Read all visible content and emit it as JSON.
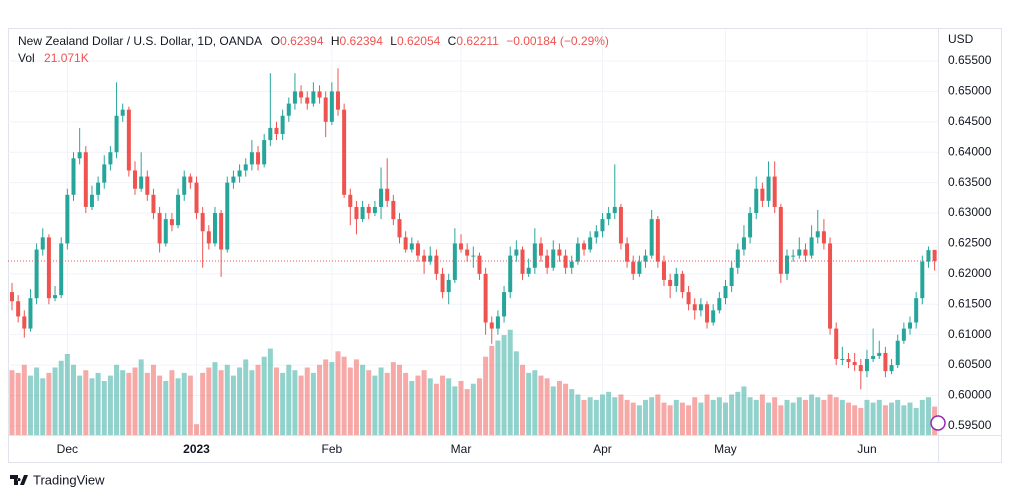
{
  "chart_data": {
    "type": "candlestick",
    "title": "New Zealand Dollar / U.S. Dollar, 1D, OANDA",
    "ohlc_labels": [
      "O",
      "H",
      "L",
      "C"
    ],
    "change_label": "−0.00184 (−0.29%)",
    "volume_label": "Vol",
    "volume_value_label": "21.071K",
    "currency": "USD",
    "up_color": "#26a69a",
    "down_color": "#ef5350",
    "grid": true,
    "xlim": [
      -0.65,
      150.55
    ],
    "xticks": [
      {
        "value": 9,
        "label": "Dec"
      },
      {
        "value": 30,
        "label": "2023"
      },
      {
        "value": 52,
        "label": "Feb"
      },
      {
        "value": 73,
        "label": "Mar"
      },
      {
        "value": 96,
        "label": "Apr"
      },
      {
        "value": 116,
        "label": "May"
      },
      {
        "value": 139,
        "label": "Jun"
      }
    ],
    "ylim": [
      0.5935,
      0.6601
    ],
    "yticks": [
      {
        "value": 0.655,
        "label": "0.65500"
      },
      {
        "value": 0.65,
        "label": "0.65000"
      },
      {
        "value": 0.645,
        "label": "0.64500"
      },
      {
        "value": 0.64,
        "label": "0.64000"
      },
      {
        "value": 0.635,
        "label": "0.63500"
      },
      {
        "value": 0.63,
        "label": "0.63000"
      },
      {
        "value": 0.625,
        "label": "0.62500"
      },
      {
        "value": 0.62,
        "label": "0.62000"
      },
      {
        "value": 0.615,
        "label": "0.61500"
      },
      {
        "value": 0.61,
        "label": "0.61000"
      },
      {
        "value": 0.605,
        "label": "0.60500"
      },
      {
        "value": 0.6,
        "label": "0.60000"
      },
      {
        "value": 0.595,
        "label": "0.59500"
      }
    ],
    "volume_lim": [
      0,
      300
    ],
    "candles": [
      [
        0.617,
        0.6185,
        0.614,
        0.6155
      ],
      [
        0.6155,
        0.6165,
        0.612,
        0.613
      ],
      [
        0.613,
        0.614,
        0.6095,
        0.611
      ],
      [
        0.611,
        0.6175,
        0.6105,
        0.616
      ],
      [
        0.616,
        0.625,
        0.615,
        0.624
      ],
      [
        0.624,
        0.6275,
        0.623,
        0.626
      ],
      [
        0.626,
        0.6265,
        0.615,
        0.616
      ],
      [
        0.616,
        0.618,
        0.6155,
        0.6165
      ],
      [
        0.6165,
        0.626,
        0.616,
        0.625
      ],
      [
        0.625,
        0.634,
        0.624,
        0.633
      ],
      [
        0.633,
        0.64,
        0.632,
        0.639
      ],
      [
        0.639,
        0.644,
        0.638,
        0.64
      ],
      [
        0.64,
        0.641,
        0.63,
        0.631
      ],
      [
        0.631,
        0.6345,
        0.6305,
        0.633
      ],
      [
        0.633,
        0.636,
        0.632,
        0.635
      ],
      [
        0.635,
        0.6395,
        0.634,
        0.638
      ],
      [
        0.638,
        0.641,
        0.637,
        0.64
      ],
      [
        0.64,
        0.6515,
        0.639,
        0.646
      ],
      [
        0.646,
        0.648,
        0.645,
        0.647
      ],
      [
        0.647,
        0.6475,
        0.636,
        0.637
      ],
      [
        0.637,
        0.6385,
        0.633,
        0.634
      ],
      [
        0.634,
        0.64,
        0.6335,
        0.636
      ],
      [
        0.636,
        0.637,
        0.632,
        0.633
      ],
      [
        0.633,
        0.634,
        0.629,
        0.63
      ],
      [
        0.63,
        0.631,
        0.6235,
        0.625
      ],
      [
        0.625,
        0.63,
        0.6245,
        0.629
      ],
      [
        0.629,
        0.63,
        0.627,
        0.628
      ],
      [
        0.628,
        0.634,
        0.6275,
        0.633
      ],
      [
        0.633,
        0.637,
        0.632,
        0.636
      ],
      [
        0.636,
        0.6365,
        0.634,
        0.635
      ],
      [
        0.635,
        0.636,
        0.629,
        0.63
      ],
      [
        0.63,
        0.631,
        0.621,
        0.627
      ],
      [
        0.627,
        0.628,
        0.624,
        0.625
      ],
      [
        0.625,
        0.631,
        0.6245,
        0.63
      ],
      [
        0.63,
        0.6305,
        0.6195,
        0.624
      ],
      [
        0.624,
        0.636,
        0.6235,
        0.635
      ],
      [
        0.635,
        0.637,
        0.634,
        0.636
      ],
      [
        0.636,
        0.638,
        0.635,
        0.637
      ],
      [
        0.637,
        0.639,
        0.636,
        0.638
      ],
      [
        0.638,
        0.642,
        0.637,
        0.64
      ],
      [
        0.64,
        0.641,
        0.637,
        0.638
      ],
      [
        0.638,
        0.643,
        0.6375,
        0.642
      ],
      [
        0.642,
        0.653,
        0.641,
        0.644
      ],
      [
        0.644,
        0.645,
        0.642,
        0.643
      ],
      [
        0.643,
        0.647,
        0.642,
        0.646
      ],
      [
        0.646,
        0.649,
        0.645,
        0.648
      ],
      [
        0.648,
        0.653,
        0.647,
        0.65
      ],
      [
        0.65,
        0.651,
        0.648,
        0.649
      ],
      [
        0.649,
        0.65,
        0.647,
        0.648
      ],
      [
        0.648,
        0.6515,
        0.6475,
        0.65
      ],
      [
        0.65,
        0.651,
        0.648,
        0.649
      ],
      [
        0.649,
        0.65,
        0.6425,
        0.645
      ],
      [
        0.645,
        0.6515,
        0.6445,
        0.65
      ],
      [
        0.65,
        0.6538,
        0.646,
        0.647
      ],
      [
        0.647,
        0.648,
        0.6325,
        0.633
      ],
      [
        0.633,
        0.634,
        0.628,
        0.631
      ],
      [
        0.631,
        0.632,
        0.6265,
        0.629
      ],
      [
        0.629,
        0.632,
        0.6285,
        0.631
      ],
      [
        0.631,
        0.6315,
        0.629,
        0.63
      ],
      [
        0.63,
        0.632,
        0.6295,
        0.631
      ],
      [
        0.631,
        0.6375,
        0.629,
        0.634
      ],
      [
        0.634,
        0.639,
        0.631,
        0.632
      ],
      [
        0.632,
        0.633,
        0.628,
        0.629
      ],
      [
        0.629,
        0.63,
        0.625,
        0.626
      ],
      [
        0.626,
        0.627,
        0.6235,
        0.624
      ],
      [
        0.624,
        0.626,
        0.6235,
        0.625
      ],
      [
        0.625,
        0.6255,
        0.622,
        0.623
      ],
      [
        0.623,
        0.624,
        0.62,
        0.622
      ],
      [
        0.622,
        0.6245,
        0.6215,
        0.623
      ],
      [
        0.623,
        0.624,
        0.619,
        0.62
      ],
      [
        0.62,
        0.621,
        0.616,
        0.617
      ],
      [
        0.617,
        0.62,
        0.615,
        0.619
      ],
      [
        0.619,
        0.6275,
        0.6185,
        0.625
      ],
      [
        0.625,
        0.6265,
        0.6235,
        0.624
      ],
      [
        0.624,
        0.625,
        0.622,
        0.623
      ],
      [
        0.623,
        0.6245,
        0.621,
        0.623
      ],
      [
        0.623,
        0.6235,
        0.619,
        0.62
      ],
      [
        0.62,
        0.621,
        0.61,
        0.612
      ],
      [
        0.612,
        0.613,
        0.6085,
        0.611
      ],
      [
        0.611,
        0.614,
        0.61,
        0.613
      ],
      [
        0.613,
        0.618,
        0.612,
        0.617
      ],
      [
        0.617,
        0.6245,
        0.616,
        0.623
      ],
      [
        0.623,
        0.6255,
        0.622,
        0.624
      ],
      [
        0.624,
        0.6245,
        0.619,
        0.62
      ],
      [
        0.62,
        0.6225,
        0.6195,
        0.621
      ],
      [
        0.621,
        0.6275,
        0.62,
        0.625
      ],
      [
        0.625,
        0.626,
        0.622,
        0.623
      ],
      [
        0.623,
        0.624,
        0.62,
        0.621
      ],
      [
        0.621,
        0.6255,
        0.6205,
        0.624
      ],
      [
        0.624,
        0.625,
        0.622,
        0.623
      ],
      [
        0.623,
        0.624,
        0.62,
        0.621
      ],
      [
        0.621,
        0.623,
        0.62,
        0.622
      ],
      [
        0.622,
        0.626,
        0.6215,
        0.625
      ],
      [
        0.625,
        0.6255,
        0.623,
        0.624
      ],
      [
        0.624,
        0.627,
        0.6235,
        0.626
      ],
      [
        0.626,
        0.628,
        0.625,
        0.627
      ],
      [
        0.627,
        0.63,
        0.626,
        0.629
      ],
      [
        0.629,
        0.631,
        0.628,
        0.63
      ],
      [
        0.63,
        0.638,
        0.629,
        0.631
      ],
      [
        0.631,
        0.6315,
        0.624,
        0.625
      ],
      [
        0.625,
        0.626,
        0.621,
        0.622
      ],
      [
        0.622,
        0.623,
        0.619,
        0.62
      ],
      [
        0.62,
        0.623,
        0.6195,
        0.622
      ],
      [
        0.622,
        0.624,
        0.621,
        0.623
      ],
      [
        0.623,
        0.6305,
        0.6225,
        0.629
      ],
      [
        0.629,
        0.6295,
        0.621,
        0.622
      ],
      [
        0.622,
        0.623,
        0.618,
        0.619
      ],
      [
        0.619,
        0.62,
        0.616,
        0.618
      ],
      [
        0.618,
        0.621,
        0.617,
        0.62
      ],
      [
        0.62,
        0.6205,
        0.616,
        0.617
      ],
      [
        0.617,
        0.618,
        0.614,
        0.615
      ],
      [
        0.615,
        0.616,
        0.6125,
        0.614
      ],
      [
        0.614,
        0.616,
        0.613,
        0.615
      ],
      [
        0.615,
        0.6155,
        0.611,
        0.612
      ],
      [
        0.612,
        0.615,
        0.6115,
        0.614
      ],
      [
        0.614,
        0.617,
        0.6135,
        0.616
      ],
      [
        0.616,
        0.619,
        0.615,
        0.618
      ],
      [
        0.618,
        0.622,
        0.617,
        0.621
      ],
      [
        0.621,
        0.625,
        0.62,
        0.624
      ],
      [
        0.624,
        0.628,
        0.623,
        0.626
      ],
      [
        0.626,
        0.631,
        0.625,
        0.63
      ],
      [
        0.63,
        0.636,
        0.629,
        0.634
      ],
      [
        0.634,
        0.635,
        0.631,
        0.632
      ],
      [
        0.632,
        0.6385,
        0.631,
        0.636
      ],
      [
        0.636,
        0.6385,
        0.63,
        0.631
      ],
      [
        0.631,
        0.6315,
        0.6185,
        0.62
      ],
      [
        0.62,
        0.624,
        0.619,
        0.623
      ],
      [
        0.623,
        0.624,
        0.622,
        0.623
      ],
      [
        0.623,
        0.626,
        0.6225,
        0.624
      ],
      [
        0.624,
        0.625,
        0.622,
        0.623
      ],
      [
        0.623,
        0.628,
        0.6225,
        0.626
      ],
      [
        0.626,
        0.6305,
        0.625,
        0.627
      ],
      [
        0.627,
        0.629,
        0.624,
        0.625
      ],
      [
        0.625,
        0.626,
        0.61,
        0.611
      ],
      [
        0.611,
        0.612,
        0.605,
        0.606
      ],
      [
        0.606,
        0.608,
        0.605,
        0.606
      ],
      [
        0.606,
        0.607,
        0.6045,
        0.6055
      ],
      [
        0.6055,
        0.607,
        0.604,
        0.605
      ],
      [
        0.605,
        0.606,
        0.601,
        0.604
      ],
      [
        0.604,
        0.6075,
        0.603,
        0.606
      ],
      [
        0.606,
        0.611,
        0.6055,
        0.6065
      ],
      [
        0.6065,
        0.609,
        0.606,
        0.607
      ],
      [
        0.607,
        0.608,
        0.603,
        0.604
      ],
      [
        0.604,
        0.606,
        0.6035,
        0.605
      ],
      [
        0.605,
        0.61,
        0.6045,
        0.609
      ],
      [
        0.609,
        0.612,
        0.6085,
        0.611
      ],
      [
        0.611,
        0.613,
        0.61,
        0.612
      ],
      [
        0.612,
        0.617,
        0.611,
        0.616
      ],
      [
        0.616,
        0.623,
        0.615,
        0.622
      ],
      [
        0.622,
        0.6245,
        0.621,
        0.6239
      ],
      [
        0.62394,
        0.62394,
        0.62054,
        0.62211
      ]
    ],
    "volume": [
      48,
      46,
      52,
      44,
      50,
      42,
      46,
      50,
      55,
      60,
      52,
      44,
      48,
      42,
      46,
      40,
      44,
      52,
      48,
      46,
      50,
      56,
      46,
      52,
      44,
      40,
      48,
      42,
      46,
      44,
      8,
      46,
      50,
      54,
      48,
      52,
      44,
      50,
      56,
      48,
      52,
      58,
      64,
      50,
      46,
      52,
      48,
      44,
      50,
      46,
      52,
      56,
      54,
      62,
      58,
      50,
      56,
      52,
      48,
      44,
      50,
      46,
      54,
      52,
      46,
      40,
      44,
      48,
      42,
      38,
      44,
      42,
      36,
      40,
      34,
      38,
      42,
      58,
      66,
      70,
      74,
      78,
      62,
      52,
      46,
      48,
      44,
      42,
      36,
      40,
      38,
      34,
      30,
      26,
      28,
      26,
      30,
      32,
      28,
      30,
      26,
      24,
      22,
      26,
      28,
      30,
      24,
      22,
      26,
      24,
      22,
      28,
      24,
      30,
      26,
      28,
      24,
      30,
      32,
      36,
      28,
      26,
      30,
      24,
      28,
      22,
      26,
      24,
      28,
      26,
      30,
      28,
      26,
      30,
      28,
      26,
      24,
      22,
      20,
      26,
      24,
      26,
      22,
      24,
      26,
      22,
      24,
      20,
      26,
      28,
      21.071
    ]
  },
  "footer": {
    "brand": "TradingView"
  }
}
